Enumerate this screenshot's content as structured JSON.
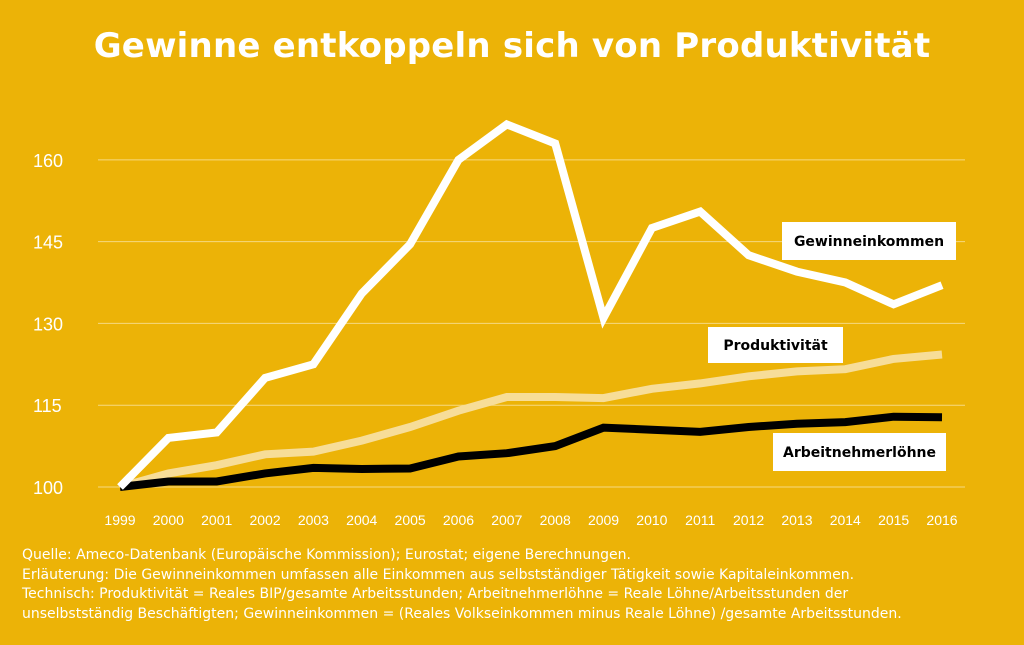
{
  "title": "Gewinne entkoppeln sich von Produktivität",
  "chart_data": {
    "type": "line",
    "x": [
      "1999",
      "2000",
      "2001",
      "2002",
      "2003",
      "2004",
      "2005",
      "2006",
      "2007",
      "2008",
      "2009",
      "2010",
      "2011",
      "2012",
      "2013",
      "2014",
      "2015",
      "2016"
    ],
    "ylim": [
      100,
      165
    ],
    "yticks": [
      "100",
      "115",
      "130",
      "145",
      "160"
    ],
    "series": [
      {
        "name": "Gewinneinkommen",
        "color": "#ffffff",
        "values": [
          100,
          109,
          110,
          120,
          122.5,
          135.5,
          144.5,
          160,
          166.5,
          163,
          131,
          147.5,
          150.5,
          142.5,
          139.5,
          137.5,
          133.5,
          137
        ]
      },
      {
        "name": "Produktivität",
        "color": "#f7dd98",
        "values": [
          100,
          102.5,
          104,
          106,
          106.5,
          108.5,
          111,
          114,
          116.5,
          116.5,
          116.3,
          118,
          119,
          120.3,
          121.2,
          121.6,
          123.5,
          124.3
        ]
      },
      {
        "name": "Arbeitnehmerlöhne",
        "color": "#000000",
        "values": [
          100,
          101,
          101,
          102.5,
          103.5,
          103.3,
          103.4,
          105.6,
          106.2,
          107.5,
          110.9,
          110.5,
          110.1,
          111,
          111.6,
          111.9,
          112.9,
          112.8
        ]
      }
    ]
  },
  "footnotes": [
    "Quelle: Ameco-Datenbank (Europäische Kommission); Eurostat; eigene Berechnungen.",
    "Erläuterung: Die Gewinneinkommen umfassen alle Einkommen aus selbstständiger Tätigkeit sowie Kapitaleinkommen.",
    "Technisch: Produktivität = Reales BIP/gesamte Arbeitsstunden; Arbeitnehmerlöhne = Reale Löhne/Arbeitsstunden der",
    "unselbstständig Beschäftigten; Gewinneinkommen = (Reales Volkseinkommen minus Reale Löhne) /gesamte Arbeitsstunden."
  ]
}
